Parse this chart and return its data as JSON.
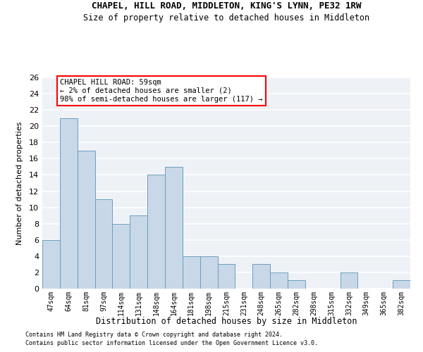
{
  "title1": "CHAPEL, HILL ROAD, MIDDLETON, KING'S LYNN, PE32 1RW",
  "title2": "Size of property relative to detached houses in Middleton",
  "xlabel": "Distribution of detached houses by size in Middleton",
  "ylabel": "Number of detached properties",
  "categories": [
    "47sqm",
    "64sqm",
    "81sqm",
    "97sqm",
    "114sqm",
    "131sqm",
    "148sqm",
    "164sqm",
    "181sqm",
    "198sqm",
    "215sqm",
    "231sqm",
    "248sqm",
    "265sqm",
    "282sqm",
    "298sqm",
    "315sqm",
    "332sqm",
    "349sqm",
    "365sqm",
    "382sqm"
  ],
  "values": [
    6,
    21,
    17,
    11,
    8,
    9,
    14,
    15,
    4,
    4,
    3,
    0,
    3,
    2,
    1,
    0,
    0,
    2,
    0,
    0,
    1
  ],
  "bar_color": "#c8d8e8",
  "bar_edge_color": "#6b9dc0",
  "annotation_text": "CHAPEL HILL ROAD: 59sqm\n← 2% of detached houses are smaller (2)\n98% of semi-detached houses are larger (117) →",
  "annotation_box_color": "white",
  "annotation_box_edge_color": "red",
  "ylim": [
    0,
    26
  ],
  "yticks": [
    0,
    2,
    4,
    6,
    8,
    10,
    12,
    14,
    16,
    18,
    20,
    22,
    24,
    26
  ],
  "background_color": "#eef2f7",
  "grid_color": "white",
  "footer1": "Contains HM Land Registry data © Crown copyright and database right 2024.",
  "footer2": "Contains public sector information licensed under the Open Government Licence v3.0."
}
